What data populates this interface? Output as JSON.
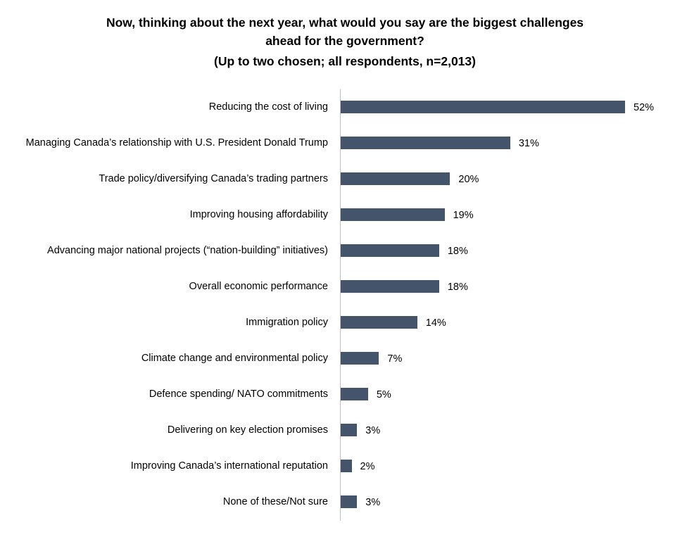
{
  "chart_data": {
    "type": "bar",
    "orientation": "horizontal",
    "title": "Now, thinking about the next year, what would you say are the biggest challenges ahead for the government?",
    "subtitle": "(Up to two chosen; all respondents, n=2,013)",
    "categories": [
      "Reducing the cost of living",
      "Managing Canada’s relationship with U.S. President Donald Trump",
      "Trade policy/diversifying Canada’s trading partners",
      "Improving housing affordability",
      "Advancing major national projects (“nation-building” initiatives)",
      "Overall economic performance",
      "Immigration policy",
      "Climate change and environmental policy",
      "Defence spending/ NATO commitments",
      "Delivering on key election promises",
      "Improving Canada’s international reputation",
      "None of these/Not sure"
    ],
    "values": [
      52,
      31,
      20,
      19,
      18,
      18,
      14,
      7,
      5,
      3,
      2,
      3
    ],
    "value_labels": [
      "52%",
      "31%",
      "20%",
      "19%",
      "18%",
      "18%",
      "14%",
      "7%",
      "5%",
      "3%",
      "2%",
      "3%"
    ],
    "color": "#44546a"
  }
}
